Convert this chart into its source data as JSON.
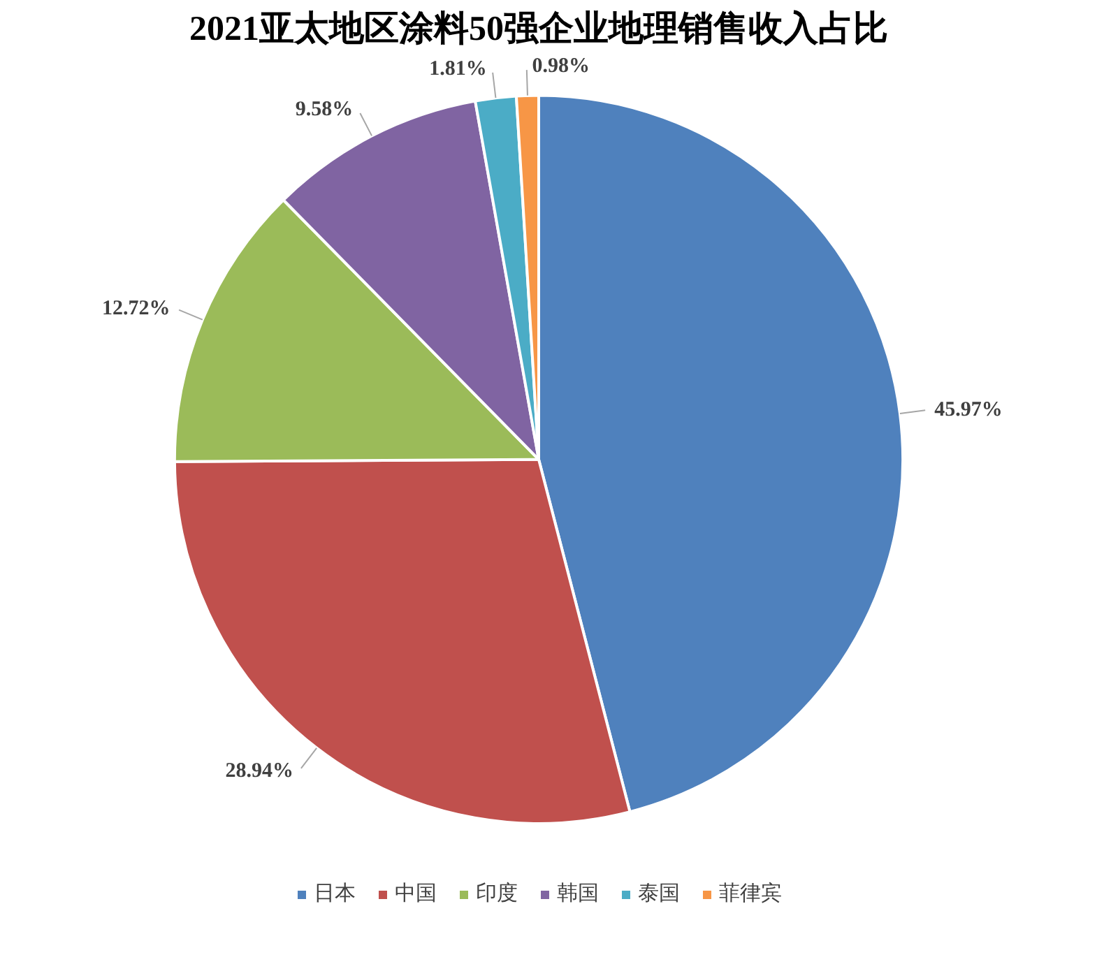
{
  "chart_data": {
    "type": "pie",
    "title": "2021亚太地区涂料50强企业地理销售收入占比",
    "categories": [
      "日本",
      "中国",
      "印度",
      "韩国",
      "泰国",
      "菲律宾"
    ],
    "values": [
      45.97,
      28.94,
      12.72,
      9.58,
      1.81,
      0.98
    ],
    "colors": [
      "#4f81bd",
      "#c0504d",
      "#9bbb59",
      "#8064a2",
      "#4bacc6",
      "#f79646"
    ],
    "value_labels": [
      "45.97%",
      "28.94%",
      "12.72%",
      "9.58%",
      "1.81%",
      "0.98%"
    ],
    "legend": "bottom"
  }
}
